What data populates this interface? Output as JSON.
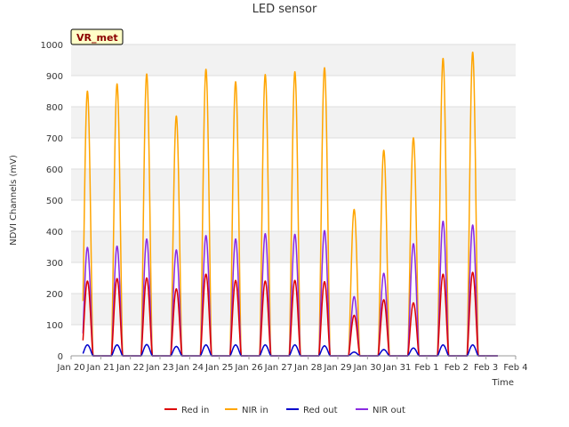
{
  "chart_data": {
    "type": "line",
    "title": "LED sensor",
    "xlabel": "Time",
    "ylabel": "NDVI Channels (mV)",
    "ylim": [
      0,
      1000
    ],
    "y_ticks": [
      0,
      100,
      200,
      300,
      400,
      500,
      600,
      700,
      800,
      900,
      1000
    ],
    "x_ticks": [
      "Jan 20",
      "Jan 21",
      "Jan 22",
      "Jan 23",
      "Jan 24",
      "Jan 25",
      "Jan 26",
      "Jan 27",
      "Jan 28",
      "Jan 29",
      "Jan 30",
      "Jan 31",
      "Feb 1",
      "Feb 2",
      "Feb 3",
      "Feb 4"
    ],
    "x_range_days": [
      0,
      15
    ],
    "data_span_days": [
      0.4,
      14.4
    ],
    "badge": "VR_met",
    "daily_peak_day_offset": 0.55,
    "series": [
      {
        "name": "Red in",
        "color": "#dd0000",
        "daily_peaks": [
          240,
          248,
          250,
          215,
          262,
          242,
          240,
          242,
          238,
          130,
          180,
          170,
          262,
          268
        ]
      },
      {
        "name": "NIR in",
        "color": "#ffa500",
        "daily_peaks": [
          850,
          873,
          905,
          770,
          920,
          880,
          903,
          912,
          925,
          470,
          660,
          700,
          955,
          975
        ]
      },
      {
        "name": "Red out",
        "color": "#0000cc",
        "daily_peaks": [
          35,
          35,
          36,
          30,
          35,
          35,
          35,
          35,
          32,
          12,
          20,
          25,
          35,
          35
        ]
      },
      {
        "name": "NIR out",
        "color": "#8a2be2",
        "daily_peaks": [
          348,
          352,
          375,
          340,
          386,
          375,
          392,
          390,
          402,
          190,
          265,
          360,
          432,
          420
        ]
      }
    ]
  }
}
